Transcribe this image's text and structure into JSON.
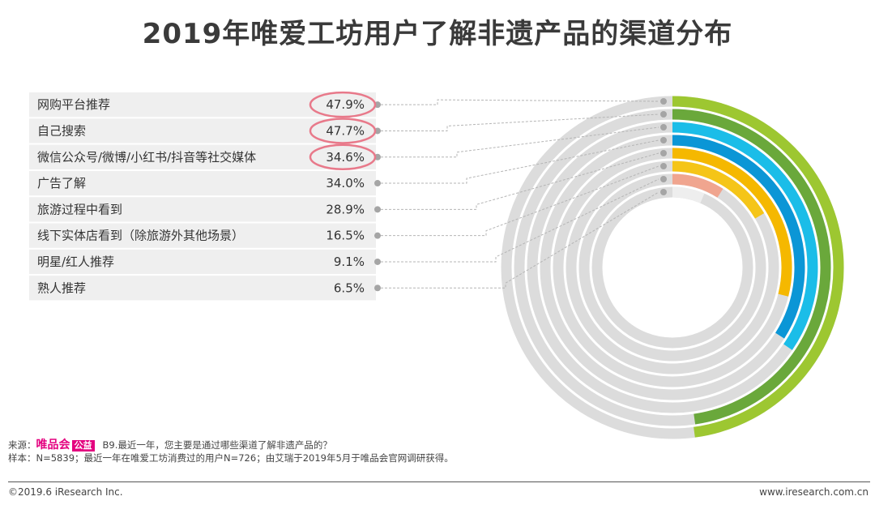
{
  "title": "2019年唯爱工坊用户了解非遗产品的渠道分布",
  "chart_data": {
    "type": "radial-bar",
    "title": "2019年唯爱工坊用户了解非遗产品的渠道分布",
    "unit": "%",
    "max": 100,
    "categories": [
      "网购平台推荐",
      "自己搜索",
      "微信公众号/微博/小红书/抖音等社交媒体",
      "广告了解",
      "旅游过程中看到",
      "线下实体店看到（除旅游外其他场景）",
      "明星/红人推荐",
      "熟人推荐"
    ],
    "values": [
      47.9,
      47.7,
      34.6,
      34.0,
      28.9,
      16.5,
      9.1,
      6.5
    ],
    "value_labels": [
      "47.9%",
      "47.7%",
      "34.6%",
      "34.0%",
      "28.9%",
      "16.5%",
      "9.1%",
      "6.5%"
    ],
    "colors": [
      "#9dc731",
      "#6aa83b",
      "#1bbde8",
      "#0b96d6",
      "#f5b800",
      "#f5c518",
      "#f0a58f",
      "#eeeeee"
    ],
    "highlighted": [
      0,
      1,
      2
    ],
    "highlight_color": "#e8798a",
    "track_color": "#dcdcdc"
  },
  "source": {
    "prefix": "来源：",
    "brand": "唯品会",
    "tag": "公益",
    "question": "B9.最近一年，您主要是通过哪些渠道了解非遗产品的？",
    "sample": "样本：N=5839；最近一年在唯爱工坊消费过的用户N=726；由艾瑞于2019年5月于唯品会官网调研获得。"
  },
  "footer": {
    "copyright": "©2019.6 iResearch Inc.",
    "website": "www.iresearch.com.cn"
  }
}
